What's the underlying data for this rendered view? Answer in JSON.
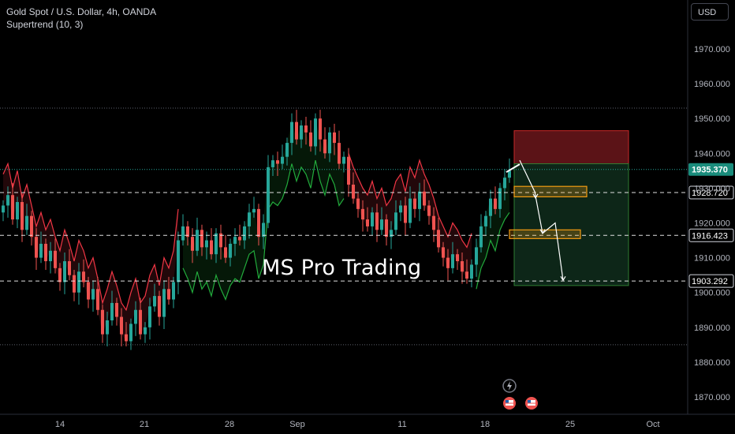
{
  "header": {
    "symbol_line": "Gold Spot / U.S. Dollar, 4h, OANDA",
    "indicator_line": "Supertrend (10, 3)"
  },
  "toolbar": {
    "currency_label": "USD"
  },
  "watermark": "MS Pro Trading",
  "colors": {
    "up": "#26a69a",
    "down": "#ef5350",
    "supertrend_up": "#22ab3c",
    "supertrend_down": "#f23645",
    "price_tag_bg": "#1a8c7c",
    "level_line": "#e0e0e0",
    "box_outline": "#f39c12",
    "stop_zone": "#7a1a1f",
    "target_zone": "#0f2d1c"
  },
  "chart_data": {
    "type": "candlestick",
    "symbol": "Gold Spot / U.S. Dollar",
    "timeframe": "4h",
    "y_axis_ticks": [
      1970,
      1960,
      1950,
      1940,
      1930,
      1920,
      1910,
      1900,
      1890,
      1880,
      1870
    ],
    "y_axis_labels": [
      "1970.000",
      "1960.000",
      "1950.000",
      "1940.000",
      "1930.000",
      "1920.000",
      "1910.000",
      "1900.000",
      "1890.000",
      "1880.000",
      "1870.000"
    ],
    "x_axis_labels": [
      "14",
      "21",
      "28",
      "Sep",
      "11",
      "18",
      "25",
      "Oct"
    ],
    "ylim": [
      1865,
      1978
    ],
    "current_price": 1935.37,
    "current_price_label": "1935.370",
    "levels": [
      {
        "value": 1928.72,
        "label": "1928.720"
      },
      {
        "value": 1916.423,
        "label": "1916.423"
      },
      {
        "value": 1903.292,
        "label": "1903.292"
      }
    ],
    "dotted_bounds": [
      1953.0,
      1885.0
    ],
    "trade_zones": {
      "stop": [
        1937.0,
        1946.5
      ],
      "target": [
        1902.0,
        1937.0
      ]
    },
    "supply_boxes": [
      [
        1927.5,
        1930.5
      ],
      [
        1915.5,
        1918.0
      ]
    ],
    "projected_path": [
      1935.5,
      1927.0,
      1917.0,
      1920.0,
      1903.5
    ],
    "closes": [
      1925,
      1928,
      1921,
      1926,
      1918,
      1922,
      1916,
      1910,
      1914,
      1909,
      1912,
      1907,
      1903,
      1909,
      1905,
      1900,
      1906,
      1903,
      1898,
      1901,
      1895,
      1888,
      1892,
      1897,
      1893,
      1888,
      1886,
      1891,
      1895,
      1888,
      1890,
      1896,
      1899,
      1893,
      1901,
      1898,
      1903,
      1915,
      1919,
      1916,
      1912,
      1918,
      1913,
      1915,
      1911,
      1917,
      1913,
      1910,
      1914,
      1916,
      1915,
      1919,
      1923,
      1924,
      1916,
      1920,
      1936,
      1938,
      1937,
      1939,
      1943,
      1949,
      1944,
      1948,
      1946,
      1942,
      1950,
      1944,
      1940,
      1946,
      1943,
      1937,
      1939,
      1931,
      1927,
      1924,
      1921,
      1919,
      1923,
      1918,
      1921,
      1916,
      1918,
      1923,
      1925,
      1920,
      1927,
      1924,
      1929,
      1925,
      1922,
      1918,
      1913,
      1910,
      1907,
      1911,
      1909,
      1906,
      1904,
      1908,
      1913,
      1919,
      1922,
      1927,
      1924,
      1930,
      1933,
      1935
    ]
  },
  "events": {
    "lightning_icon": "lightning-icon",
    "flags": [
      "us-flag-icon",
      "us-flag-icon"
    ]
  }
}
